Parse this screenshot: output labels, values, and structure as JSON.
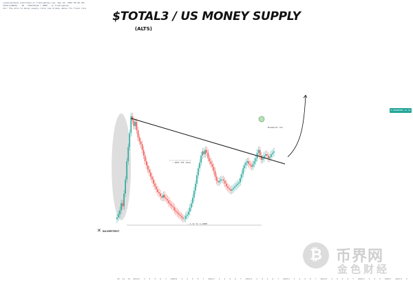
{
  "header": {
    "line1": "(watermarked) published on TradingView.com, Sep 23, 2025 05:46 UTC",
    "line2": "TOTAL3/WM2SL · 1W · CRYPTOCAP / FRED · on TradingView",
    "line3": "11x: The alts to money supply ratio has broken above its trend line"
  },
  "title": "$TOTAL3 / US MONEY SUPPLY",
  "subtitle": "(ALTS)",
  "price_tag": "0.00000085 1d 3h",
  "brand": {
    "name": "SILVERTRST",
    "logo_icon": "x-mark-icon"
  },
  "annotations": {
    "support_label": "— 2021 ATL Zone",
    "breakout_label": "Breakout ret.",
    "range_label": "— 1,1x to 1,1000"
  },
  "watermark": {
    "cn_big": "币界网",
    "cn_small": "金色财经",
    "logo_glyph": "₿"
  },
  "colors": {
    "up": "#26a69a",
    "down": "#ef5350",
    "trendline": "#111111",
    "highlight": "#b5b5b5",
    "breakout_circle": "#43a047",
    "projection": "#111111"
  },
  "chart_data": {
    "type": "candlestick",
    "title": "$TOTAL3 / US MONEY SUPPLY",
    "subtitle": "(ALTS)",
    "x_tick_labels": [
      "10",
      "11",
      "12",
      "2019",
      "2",
      "3",
      "4",
      "5",
      "6",
      "7",
      "2020",
      "2",
      "3",
      "4",
      "5",
      "6",
      "7",
      "2021",
      "2",
      "3",
      "4",
      "5",
      "6",
      "7",
      "2022",
      "2",
      "3",
      "4",
      "5",
      "6",
      "7",
      "2023",
      "2",
      "3",
      "4",
      "5",
      "6",
      "7",
      "2024",
      "2",
      "3",
      "4",
      "5",
      "6",
      "7",
      "2025",
      "2",
      "3",
      "4",
      "5",
      "2026",
      "7",
      "2027",
      "2",
      "3"
    ],
    "series": [
      {
        "name": "TOTAL3/WM2SL",
        "close": [
          0.28,
          0.3,
          0.33,
          0.38,
          0.36,
          0.45,
          0.55,
          0.68,
          0.78,
          0.88,
          1.0,
          0.97,
          0.93,
          0.96,
          0.9,
          0.85,
          0.82,
          0.8,
          0.76,
          0.72,
          0.68,
          0.65,
          0.62,
          0.6,
          0.57,
          0.55,
          0.52,
          0.5,
          0.48,
          0.46,
          0.45,
          0.43,
          0.42,
          0.44,
          0.42,
          0.41,
          0.4,
          0.38,
          0.37,
          0.36,
          0.35,
          0.33,
          0.32,
          0.31,
          0.3,
          0.29,
          0.28,
          0.27,
          0.27,
          0.29,
          0.3,
          0.32,
          0.35,
          0.38,
          0.42,
          0.47,
          0.52,
          0.58,
          0.63,
          0.67,
          0.72,
          0.75,
          0.73,
          0.76,
          0.74,
          0.7,
          0.68,
          0.66,
          0.64,
          0.61,
          0.57,
          0.54,
          0.53,
          0.54,
          0.55,
          0.55,
          0.54,
          0.52,
          0.5,
          0.49,
          0.48,
          0.47,
          0.48,
          0.49,
          0.5,
          0.51,
          0.52,
          0.53,
          0.56,
          0.59,
          0.63,
          0.65,
          0.67,
          0.68,
          0.66,
          0.65,
          0.64,
          0.66,
          0.68,
          0.7,
          0.74,
          0.76,
          0.72,
          0.69,
          0.7,
          0.72,
          0.73,
          0.72,
          0.7,
          0.71,
          0.73,
          0.74,
          0.75
        ],
        "open_offset_note": ""
      }
    ],
    "trendline": {
      "start": 0.985,
      "end": 0.66,
      "label": ""
    },
    "projection_end": 1.15,
    "ylim": [
      0.2,
      1.2
    ],
    "grid": false,
    "legend": "none"
  }
}
